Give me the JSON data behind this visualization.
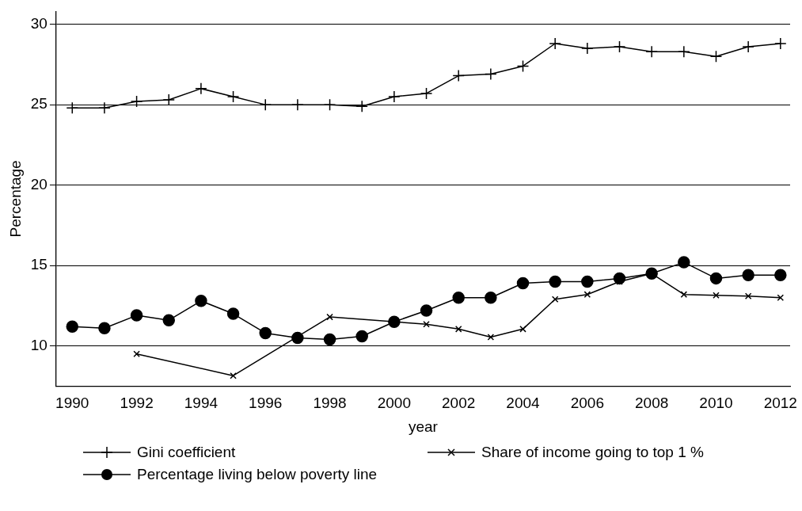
{
  "chart_data": {
    "type": "line",
    "xlabel": "year",
    "ylabel": "Percentage",
    "x": [
      1990,
      1991,
      1992,
      1993,
      1994,
      1995,
      1996,
      1997,
      1998,
      1999,
      2000,
      2001,
      2002,
      2003,
      2004,
      2005,
      2006,
      2007,
      2008,
      2009,
      2010,
      2011,
      2012
    ],
    "series": [
      {
        "name": "Gini coefficient",
        "color": "#000000",
        "marker": "cross",
        "values": [
          24.8,
          24.8,
          25.2,
          25.3,
          26.0,
          25.5,
          25.0,
          25.0,
          25.0,
          24.9,
          25.5,
          25.7,
          26.8,
          26.9,
          27.4,
          28.8,
          28.5,
          28.6,
          28.3,
          28.3,
          28.0,
          28.6,
          28.8
        ]
      },
      {
        "name": "Share of income going to top 1 %",
        "color": "#000000",
        "marker": "x",
        "x": [
          1992,
          1995,
          1998,
          2001,
          2002,
          2003,
          2004,
          2005,
          2006,
          2007,
          2008,
          2009,
          2010,
          2011,
          2012
        ],
        "values": [
          9.5,
          8.15,
          11.8,
          11.35,
          11.05,
          10.55,
          11.05,
          12.9,
          13.2,
          14.0,
          14.5,
          13.2,
          13.15,
          13.1,
          13.0
        ]
      },
      {
        "name": "Percentage living below poverty line",
        "color": "#000000",
        "marker": "circle",
        "values": [
          11.2,
          11.1,
          11.9,
          11.6,
          12.8,
          12.0,
          10.8,
          10.5,
          10.4,
          10.6,
          11.5,
          12.2,
          13.0,
          13.0,
          13.9,
          14.0,
          14.0,
          14.2,
          14.5,
          15.2,
          14.2,
          14.4,
          14.4
        ]
      }
    ],
    "xlim": [
      1989.5,
      2012.3
    ],
    "xticks": [
      1990,
      1992,
      1994,
      1996,
      1998,
      2000,
      2002,
      2004,
      2006,
      2008,
      2010,
      2012
    ],
    "ylim": [
      7.5,
      30.8
    ],
    "yticks": [
      10,
      15,
      20,
      25,
      30
    ],
    "grid": "y",
    "legend": "bottom",
    "line_style": "solid"
  }
}
